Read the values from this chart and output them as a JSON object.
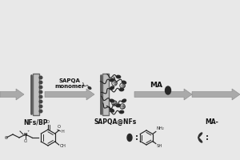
{
  "bg_color": "#e8e8e8",
  "arrow_color": "#aaaaaa",
  "membrane_color": "#b0b0b0",
  "membrane_dark": "#666666",
  "dot_color": "#444444",
  "text_color": "#000000",
  "labels": {
    "step1": "SAPQA\nmonomer",
    "step2": "MA",
    "label1": "NFs/BP",
    "label2": "SAPQA@NFs",
    "label3": "MA-",
    "nh2": "NH₂",
    "sh": "SH"
  },
  "figsize": [
    3.0,
    2.0
  ],
  "dpi": 100
}
